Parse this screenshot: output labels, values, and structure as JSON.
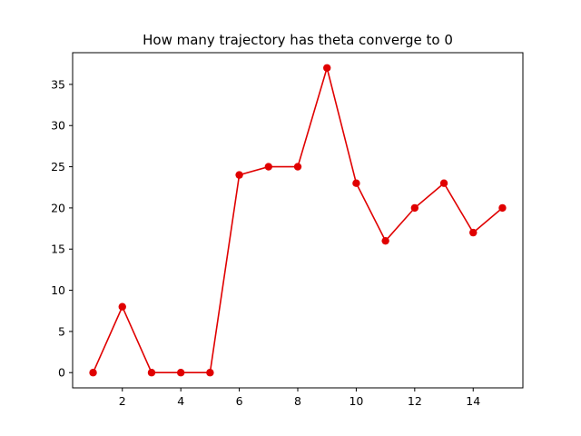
{
  "chart_data": {
    "type": "line",
    "title": "How many trajectory has theta converge to 0",
    "xlabel": "",
    "ylabel": "",
    "x": [
      1,
      2,
      3,
      4,
      5,
      6,
      7,
      8,
      9,
      10,
      11,
      12,
      13,
      14,
      15
    ],
    "series": [
      {
        "values": [
          0,
          8,
          0,
          0,
          0,
          24,
          25,
          25,
          37,
          23,
          16,
          20,
          23,
          17,
          20
        ],
        "color": "#e00000",
        "marker": "circle"
      }
    ],
    "xlim": [
      0.3,
      15.7
    ],
    "ylim": [
      -1.85,
      38.85
    ],
    "xticks": [
      2,
      4,
      6,
      8,
      10,
      12,
      14
    ],
    "yticks": [
      0,
      5,
      10,
      15,
      20,
      25,
      30,
      35
    ],
    "grid": false,
    "legend": "none"
  }
}
